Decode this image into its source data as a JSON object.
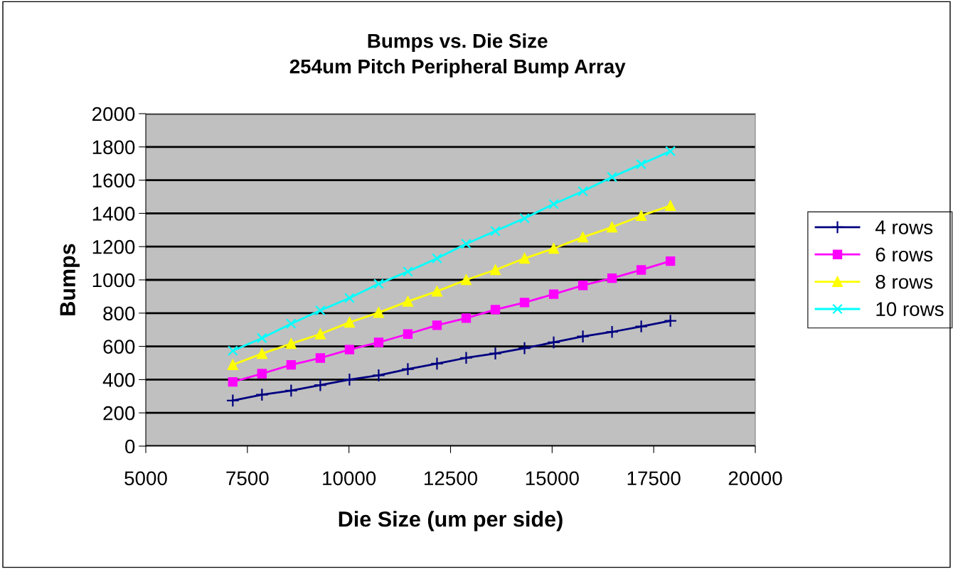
{
  "chart_data": {
    "type": "line",
    "title": "Bumps vs. Die Size\n254um Pitch Peripheral Bump Array",
    "xlabel": "Die Size (um per side)",
    "ylabel": "Bumps",
    "x": [
      7141,
      7859,
      8577,
      9295,
      10013,
      10731,
      11449,
      12167,
      12885,
      13603,
      14321,
      15039,
      15757,
      16475,
      17193,
      17911
    ],
    "series": [
      {
        "name": "4 rows",
        "color": "#000080",
        "marker": "plus",
        "values": [
          274,
          309,
          334,
          367,
          400,
          426,
          463,
          496,
          531,
          557,
          589,
          624,
          660,
          687,
          720,
          754
        ]
      },
      {
        "name": "6 rows",
        "color": "#ff00ff",
        "marker": "square",
        "values": [
          386,
          436,
          489,
          530,
          581,
          624,
          674,
          727,
          770,
          821,
          864,
          914,
          967,
          1010,
          1060,
          1113
        ]
      },
      {
        "name": "8 rows",
        "color": "#ffff00",
        "marker": "triangle",
        "values": [
          489,
          556,
          616,
          674,
          744,
          803,
          870,
          931,
          1000,
          1060,
          1129,
          1189,
          1257,
          1317,
          1386,
          1446
        ]
      },
      {
        "name": "10 rows",
        "color": "#00ffff",
        "marker": "cross",
        "values": [
          574,
          650,
          736,
          816,
          891,
          976,
          1050,
          1129,
          1217,
          1294,
          1371,
          1456,
          1533,
          1619,
          1696,
          1774
        ]
      }
    ],
    "xlim": [
      5000,
      20000
    ],
    "xticks": [
      5000,
      7500,
      10000,
      12500,
      15000,
      17500,
      20000
    ],
    "ylim": [
      0,
      2000
    ],
    "yticks": [
      0,
      200,
      400,
      600,
      800,
      1000,
      1200,
      1400,
      1600,
      1800,
      2000
    ],
    "grid": "y",
    "legend": "right",
    "line_style": "solid"
  }
}
